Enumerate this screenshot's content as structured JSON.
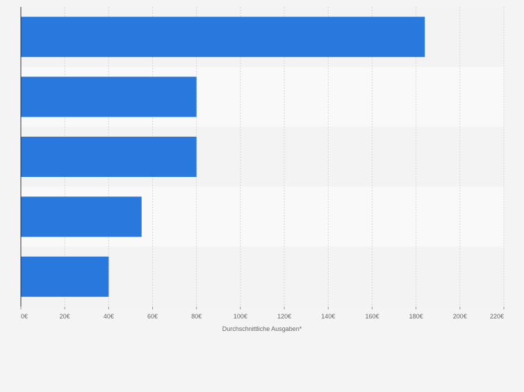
{
  "chart_data": {
    "type": "bar",
    "orientation": "horizontal",
    "categories": [
      "",
      "",
      "",
      "",
      ""
    ],
    "values": [
      184,
      80,
      80,
      55,
      40
    ],
    "xlabel": "Durchschnittliche Ausgaben*",
    "ylabel": "",
    "xlim": [
      0,
      220
    ],
    "ticks": [
      0,
      20,
      40,
      60,
      80,
      100,
      120,
      140,
      160,
      180,
      200,
      220
    ],
    "tick_labels": [
      "0€",
      "20€",
      "40€",
      "60€",
      "80€",
      "100€",
      "120€",
      "140€",
      "160€",
      "180€",
      "200€",
      "220€"
    ],
    "grid": true,
    "colors": {
      "bar": "#2878de",
      "band_dark": "#f3f3f3",
      "band_light": "#f9f9f9",
      "grid": "#d6d6d6",
      "axis": "#333333",
      "text": "#666666"
    }
  }
}
